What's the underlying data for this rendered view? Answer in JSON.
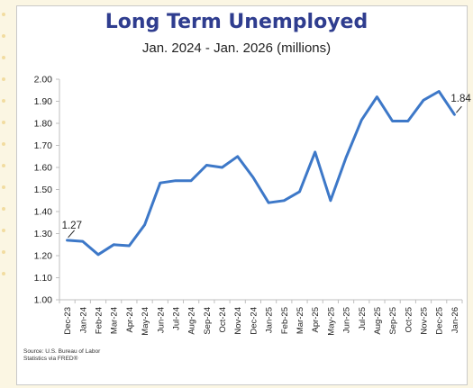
{
  "chart_data": {
    "type": "line",
    "title": "Long Term Unemployed",
    "subtitle": "Jan. 2024 - Jan. 2026 (millions)",
    "categories": [
      "Dec-23",
      "Jan-24",
      "Feb-24",
      "Mar-24",
      "Apr-24",
      "May-24",
      "Jun-24",
      "Jul-24",
      "Aug-24",
      "Sep-24",
      "Oct-24",
      "Nov-24",
      "Dec-24",
      "Jan-25",
      "Feb-25",
      "Mar-25",
      "Apr-25",
      "May-25",
      "Jun-25",
      "Jul-25",
      "Aug-25",
      "Sep-25",
      "Oct-25",
      "Nov-25",
      "Dec-25",
      "Jan-26"
    ],
    "series": [
      {
        "values": [
          1.27,
          1.265,
          1.205,
          1.25,
          1.245,
          1.34,
          1.53,
          1.54,
          1.54,
          1.61,
          1.6,
          1.65,
          1.555,
          1.44,
          1.45,
          1.49,
          1.67,
          1.45,
          1.645,
          1.815,
          1.92,
          1.81,
          1.81,
          1.905,
          1.945,
          1.84
        ]
      }
    ],
    "ylim": [
      1.0,
      2.0
    ],
    "yticks": [
      "1.00",
      "1.10",
      "1.20",
      "1.30",
      "1.40",
      "1.50",
      "1.60",
      "1.70",
      "1.80",
      "1.90",
      "2.00"
    ],
    "annotations": [
      {
        "label": "1.27",
        "index": 0
      },
      {
        "label": "1.84",
        "index": 25
      }
    ],
    "source": "Source: U.S. Bureau of Labor Statistics via FRED®",
    "line_color": "#3d78c8",
    "grid": false
  }
}
